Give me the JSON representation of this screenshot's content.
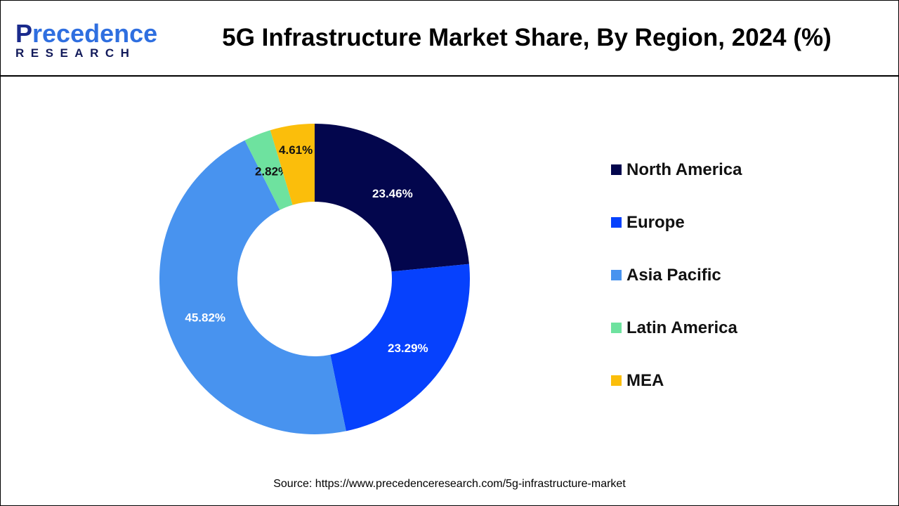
{
  "logo": {
    "line1a": "P",
    "line1b": "recedence",
    "line2": "RESEARCH"
  },
  "source": "Source: https://www.precedenceresearch.com/5g-infrastructure-market",
  "chart_data": {
    "type": "pie",
    "donut": true,
    "title": "5G Infrastructure Market Share, By Region, 2024 (%)",
    "categories": [
      "North America",
      "Europe",
      "Asia Pacific",
      "Latin America",
      "MEA"
    ],
    "values": [
      23.46,
      23.29,
      45.82,
      2.82,
      4.61
    ],
    "labels": [
      "23.46%",
      "23.29%",
      "45.82%",
      "2.82%",
      "4.61%"
    ],
    "colors": [
      "#03064d",
      "#0641fd",
      "#4893ef",
      "#6ee29f",
      "#fbbe0b"
    ],
    "label_colors": [
      "#ffffff",
      "#ffffff",
      "#ffffff",
      "#111111",
      "#111111"
    ],
    "legend_position": "right"
  }
}
